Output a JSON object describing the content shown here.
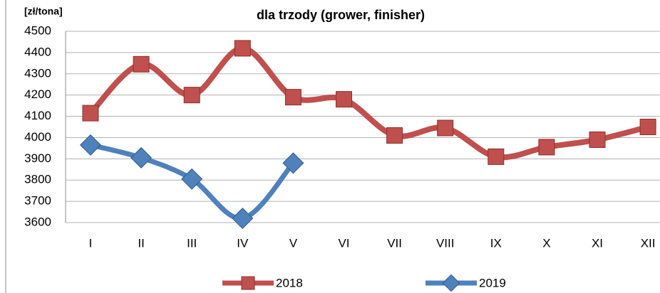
{
  "chart_data": {
    "type": "line",
    "title": "dla trzody (grower, finisher)",
    "y_label": "[zł/tona]",
    "categories": [
      "I",
      "II",
      "III",
      "IV",
      "V",
      "VI",
      "VII",
      "VIII",
      "IX",
      "X",
      "XI",
      "XII"
    ],
    "series": [
      {
        "name": "2018",
        "color": "#c0504d",
        "marker": "square",
        "values": [
          4115,
          4345,
          4200,
          4420,
          4190,
          4180,
          4010,
          4045,
          3910,
          3955,
          3990,
          4050
        ]
      },
      {
        "name": "2019",
        "color": "#4f81bd",
        "marker": "diamond",
        "values": [
          3965,
          3905,
          3805,
          3620,
          3880,
          null,
          null,
          null,
          null,
          null,
          null,
          null
        ]
      }
    ],
    "ylim": [
      3600,
      4500
    ],
    "yticks": [
      3600,
      3700,
      3800,
      3900,
      4000,
      4100,
      4200,
      4300,
      4400,
      4500
    ],
    "grid": true,
    "legend": "bottom"
  }
}
